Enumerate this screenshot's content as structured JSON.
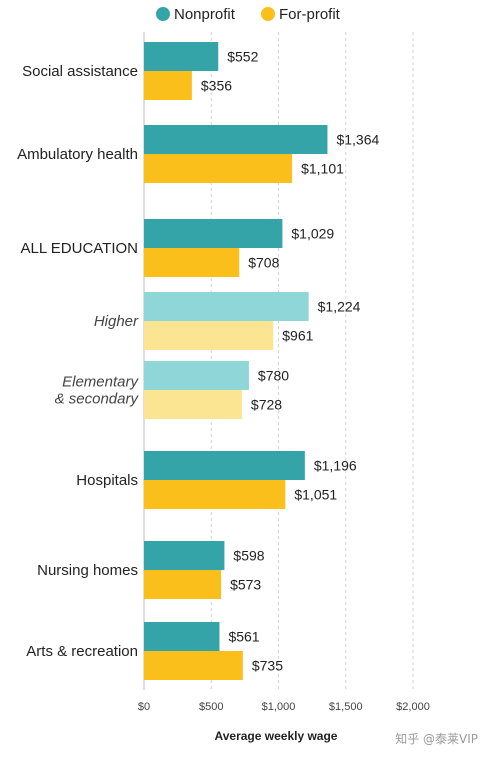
{
  "chart_data": {
    "type": "bar",
    "orientation": "horizontal",
    "xlabel": "Average weekly wage",
    "xlim": [
      0,
      2000
    ],
    "x_ticks": [
      0,
      500,
      1000,
      1500,
      2000
    ],
    "x_tick_labels": [
      "$0",
      "$500",
      "$1,000",
      "$1,500",
      "$2,000"
    ],
    "grid": true,
    "legend_position": "top",
    "categories": [
      {
        "label": "Social assistance",
        "style": "normal",
        "shade": "dark"
      },
      {
        "label": "Ambulatory health",
        "style": "normal",
        "shade": "dark"
      },
      {
        "label": "ALL EDUCATION",
        "style": "normal",
        "shade": "dark"
      },
      {
        "label": "Higher",
        "style": "italic",
        "shade": "light"
      },
      {
        "label": "Elementary\n& secondary",
        "style": "italic",
        "shade": "light"
      },
      {
        "label": "Hospitals",
        "style": "normal",
        "shade": "dark"
      },
      {
        "label": "Nursing homes",
        "style": "normal",
        "shade": "dark"
      },
      {
        "label": "Arts & recreation",
        "style": "normal",
        "shade": "dark"
      }
    ],
    "series": [
      {
        "name": "Nonprofit",
        "color": "#34a4a9",
        "light_color": "#8fd6d8",
        "values": [
          552,
          1364,
          1029,
          1224,
          780,
          1196,
          598,
          561
        ],
        "value_labels": [
          "$552",
          "$1,364",
          "$1,029",
          "$1,224",
          "$780",
          "$1,196",
          "$598",
          "$561"
        ]
      },
      {
        "name": "For-profit",
        "color": "#fbbf1c",
        "light_color": "#fce592",
        "values": [
          356,
          1101,
          708,
          961,
          728,
          1051,
          573,
          735
        ],
        "value_labels": [
          "$356",
          "$1,101",
          "$708",
          "$961",
          "$728",
          "$1,051",
          "$573",
          "$735"
        ]
      }
    ]
  },
  "watermark": "知乎 @泰莱VIP"
}
